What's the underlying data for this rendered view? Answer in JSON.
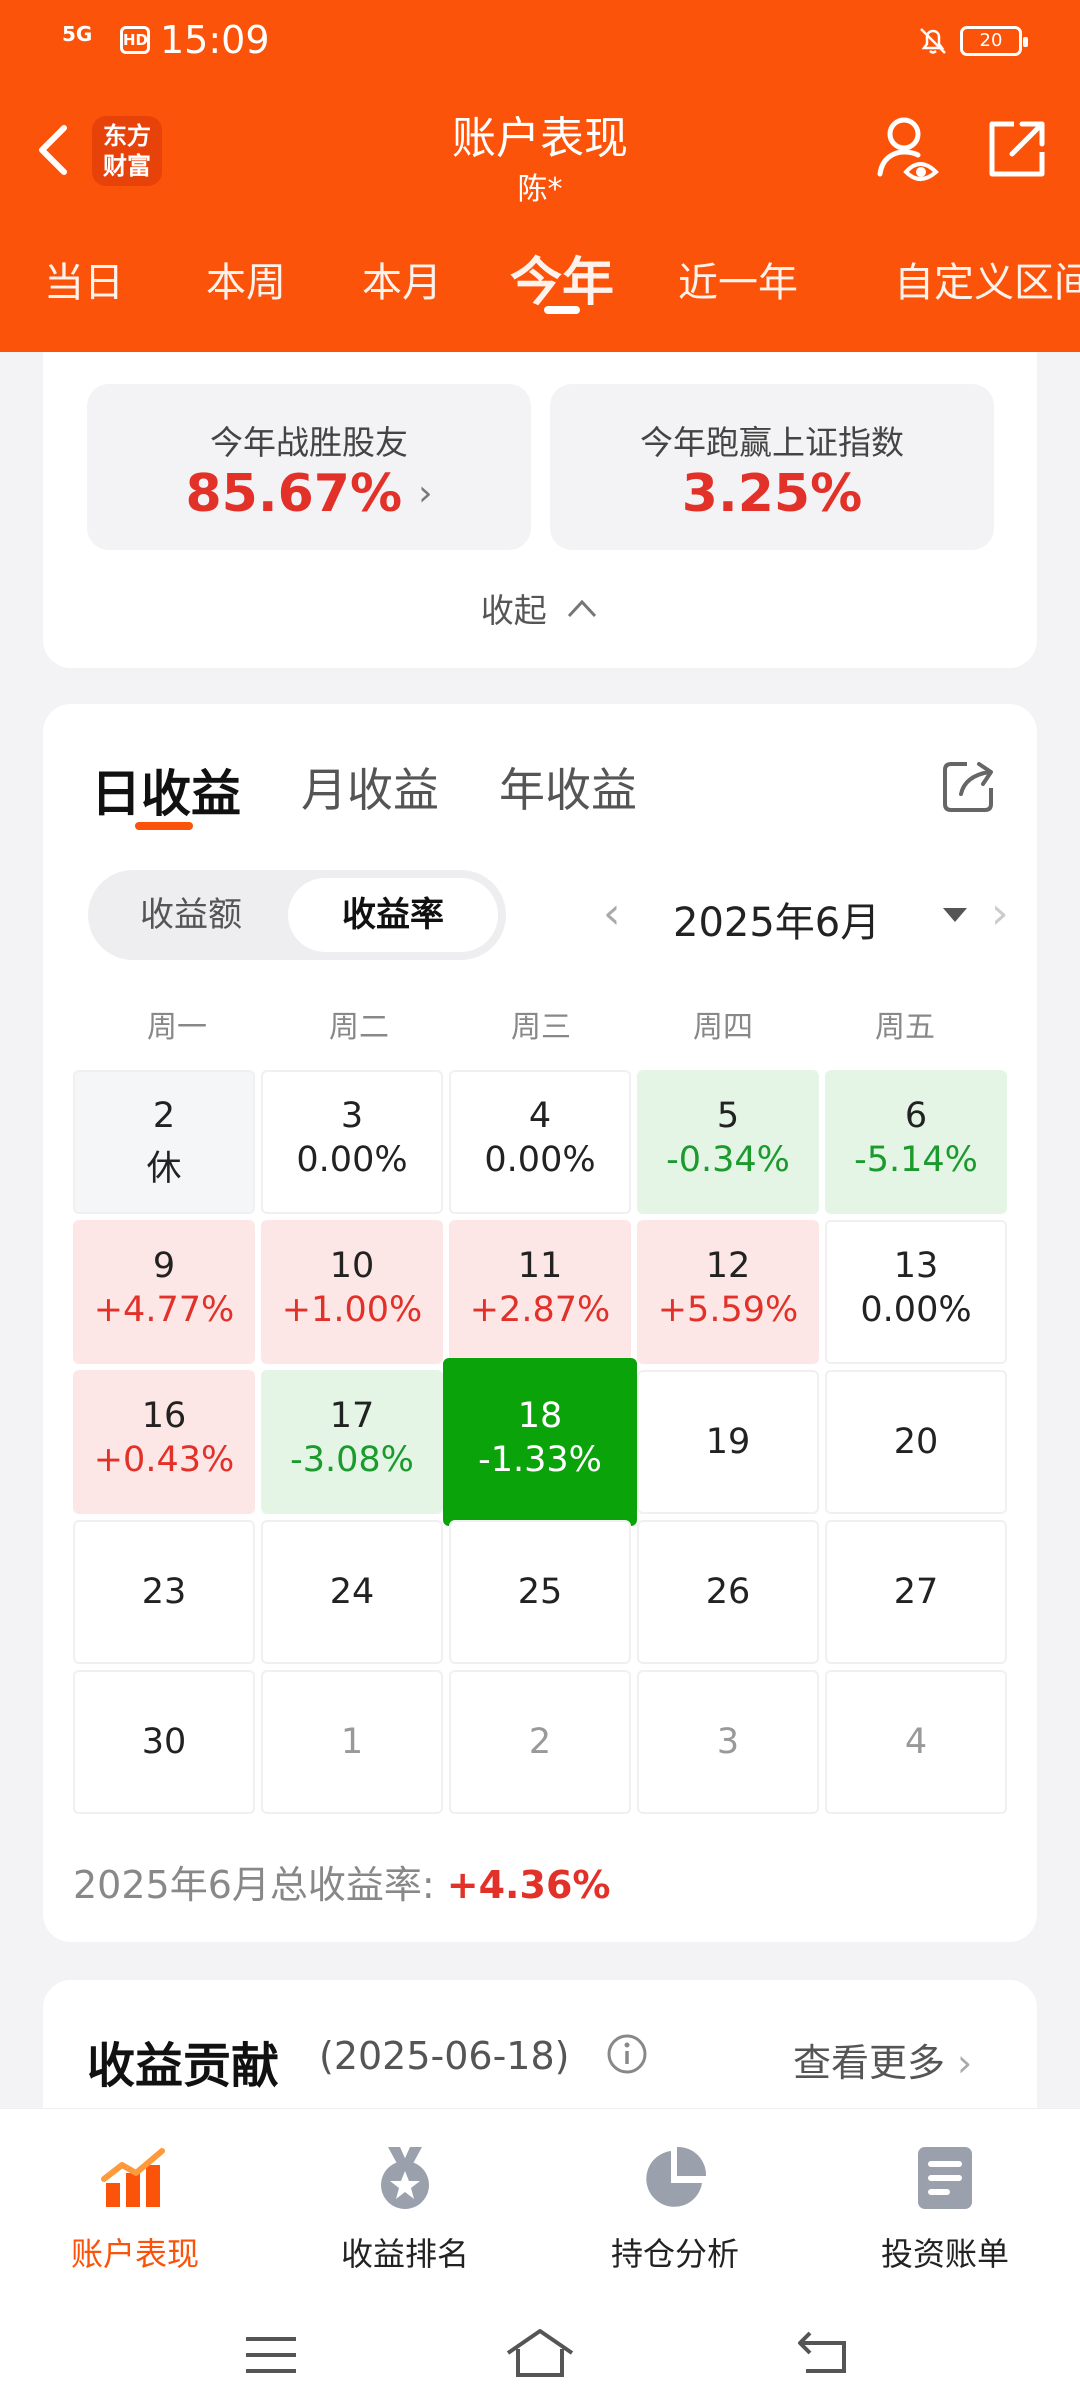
{
  "status_bar": {
    "signal": "5G",
    "hd": "HD",
    "time": "15:09",
    "battery": "20"
  },
  "header": {
    "logo_line1": "东方",
    "logo_line2": "财富",
    "title": "账户表现",
    "subtitle": "陈*",
    "tabs": [
      "当日",
      "本周",
      "本月",
      "今年",
      "近一年",
      "自定义区间"
    ],
    "active_tab": "今年"
  },
  "summary": {
    "beat_friends_label": "今年战胜股友",
    "beat_friends_value": "85.67%",
    "beat_index_label": "今年跑赢上证指数",
    "beat_index_value": "3.25%",
    "collapse_label": "收起"
  },
  "profit": {
    "tabs": [
      "日收益",
      "月收益",
      "年收益"
    ],
    "active_tab": "日收益",
    "segments": [
      "收益额",
      "收益率"
    ],
    "active_segment": "收益率",
    "month_label": "2025年6月",
    "weekdays": [
      "周一",
      "周二",
      "周三",
      "周四",
      "周五"
    ],
    "cells": [
      {
        "day": "2",
        "value": "休"
      },
      {
        "day": "3",
        "value": "0.00%"
      },
      {
        "day": "4",
        "value": "0.00%"
      },
      {
        "day": "5",
        "value": "-0.34%"
      },
      {
        "day": "6",
        "value": "-5.14%"
      },
      {
        "day": "9",
        "value": "+4.77%"
      },
      {
        "day": "10",
        "value": "+1.00%"
      },
      {
        "day": "11",
        "value": "+2.87%"
      },
      {
        "day": "12",
        "value": "+5.59%"
      },
      {
        "day": "13",
        "value": "0.00%"
      },
      {
        "day": "16",
        "value": "+0.43%"
      },
      {
        "day": "17",
        "value": "-3.08%"
      },
      {
        "day": "18",
        "value": "-1.33%"
      },
      {
        "day": "19"
      },
      {
        "day": "20"
      },
      {
        "day": "23"
      },
      {
        "day": "24"
      },
      {
        "day": "25"
      },
      {
        "day": "26"
      },
      {
        "day": "27"
      },
      {
        "day": "30"
      },
      {
        "day": "1"
      },
      {
        "day": "2"
      },
      {
        "day": "3"
      },
      {
        "day": "4"
      }
    ],
    "total_label": "2025年6月总收益率:",
    "total_value": "+4.36%"
  },
  "contribution": {
    "title": "收益贡献",
    "date": "(2025-06-18)",
    "more": "查看更多"
  },
  "bottom_nav": [
    "账户表现",
    "收益排名",
    "持仓分析",
    "投资账单"
  ],
  "colors": {
    "brand": "#fb5309",
    "up": "#e23129",
    "down": "#1b9a2e",
    "selected": "#0aa30a"
  }
}
